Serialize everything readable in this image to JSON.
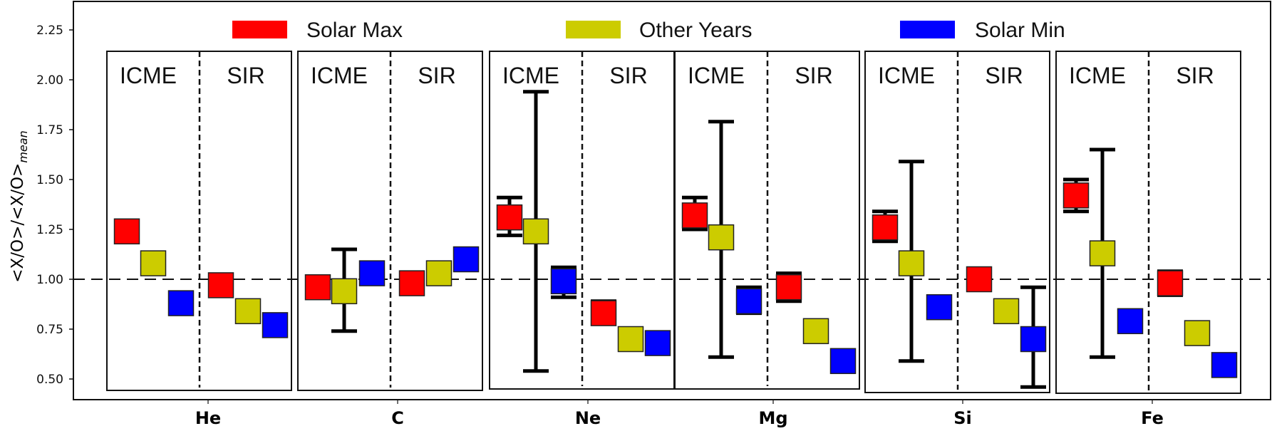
{
  "chart_data": {
    "type": "scatter",
    "title": "",
    "xlabel": "",
    "ylabel": "<X/O>/<X/O>",
    "ylabel_subscript": "mean",
    "ylim": [
      0.43,
      2.38
    ],
    "yticks": [
      0.5,
      0.75,
      1.0,
      1.25,
      1.5,
      1.75,
      2.0,
      2.25
    ],
    "ytick_labels": [
      "0.50",
      "0.75",
      "1.00",
      "1.25",
      "1.50",
      "1.75",
      "2.00",
      "2.25"
    ],
    "reference_line": 1.0,
    "grid": false,
    "legend_position": "top",
    "categories": [
      "He",
      "C",
      "Ne",
      "Mg",
      "Si",
      "Fe"
    ],
    "panel_groups": [
      "ICME",
      "SIR"
    ],
    "series": [
      {
        "name": "Solar Max",
        "color": "#ff0000",
        "ICME": [
          1.24,
          0.96,
          1.31,
          1.32,
          1.26,
          1.42
        ],
        "SIR": [
          0.97,
          0.98,
          0.83,
          0.96,
          1.0,
          0.98
        ]
      },
      {
        "name": "Other Years",
        "color": "#cccc00",
        "ICME": [
          1.08,
          0.94,
          1.24,
          1.21,
          1.08,
          1.13
        ],
        "SIR": [
          0.84,
          1.03,
          0.7,
          0.74,
          0.84,
          0.73
        ]
      },
      {
        "name": "Solar Min",
        "color": "#0000ff",
        "ICME": [
          0.88,
          1.03,
          0.99,
          0.89,
          0.86,
          0.79
        ],
        "SIR": [
          0.77,
          1.1,
          0.68,
          0.59,
          0.7,
          0.57
        ]
      }
    ],
    "error_bars": [
      {
        "category": "C",
        "group": "ICME",
        "series": "Other Years",
        "low": 0.74,
        "high": 1.15
      },
      {
        "category": "Ne",
        "group": "ICME",
        "series": "Solar Max",
        "low": 1.22,
        "high": 1.41
      },
      {
        "category": "Ne",
        "group": "ICME",
        "series": "Other Years",
        "low": 0.54,
        "high": 1.94
      },
      {
        "category": "Ne",
        "group": "ICME",
        "series": "Solar Min",
        "low": 0.91,
        "high": 1.06
      },
      {
        "category": "Ne",
        "group": "SIR",
        "series": "Solar Max",
        "low": 0.8,
        "high": 0.89
      },
      {
        "category": "Mg",
        "group": "ICME",
        "series": "Solar Max",
        "low": 1.25,
        "high": 1.41
      },
      {
        "category": "Mg",
        "group": "ICME",
        "series": "Other Years",
        "low": 0.61,
        "high": 1.79
      },
      {
        "category": "Mg",
        "group": "ICME",
        "series": "Solar Min",
        "low": 0.83,
        "high": 0.96
      },
      {
        "category": "Mg",
        "group": "SIR",
        "series": "Solar Max",
        "low": 0.89,
        "high": 1.03
      },
      {
        "category": "Si",
        "group": "ICME",
        "series": "Solar Max",
        "low": 1.19,
        "high": 1.34
      },
      {
        "category": "Si",
        "group": "ICME",
        "series": "Other Years",
        "low": 0.59,
        "high": 1.59
      },
      {
        "category": "Si",
        "group": "SIR",
        "series": "Solar Min",
        "low": 0.46,
        "high": 0.96
      },
      {
        "category": "Fe",
        "group": "ICME",
        "series": "Solar Max",
        "low": 1.34,
        "high": 1.5
      },
      {
        "category": "Fe",
        "group": "ICME",
        "series": "Other Years",
        "low": 0.61,
        "high": 1.65
      },
      {
        "category": "Fe",
        "group": "SIR",
        "series": "Solar Max",
        "low": 0.92,
        "high": 1.04
      }
    ]
  },
  "legend": {
    "items": [
      {
        "label": "Solar Max",
        "color": "#ff0000"
      },
      {
        "label": "Other Years",
        "color": "#cccc00"
      },
      {
        "label": "Solar Min",
        "color": "#0000ff"
      }
    ]
  },
  "panels": {
    "left_label": "ICME",
    "right_label": "SIR"
  }
}
